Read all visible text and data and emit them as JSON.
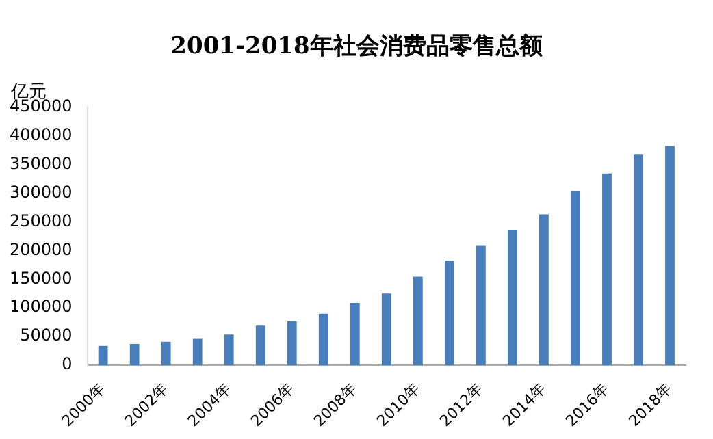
{
  "chart_data": {
    "type": "bar",
    "title": "2001-2018年社会消费品零售总额",
    "ylabel": "亿元",
    "categories": [
      "2000年",
      null,
      "2002年",
      null,
      "2004年",
      null,
      "2006年",
      null,
      "2008年",
      null,
      "2010年",
      null,
      "2012年",
      null,
      "2014年",
      null,
      "2016年",
      null,
      "2018年"
    ],
    "values": [
      34000,
      37000,
      41000,
      46000,
      53500,
      69000,
      76500,
      90000,
      108500,
      125000,
      154500,
      182500,
      208000,
      236000,
      263000,
      303000,
      334000,
      368000,
      382000
    ],
    "color": "#4a7ebb",
    "ylim": [
      0,
      450000
    ],
    "yticks": [
      0,
      50000,
      100000,
      150000,
      200000,
      250000,
      300000,
      350000,
      400000,
      450000
    ],
    "grid": false,
    "legend": false
  }
}
